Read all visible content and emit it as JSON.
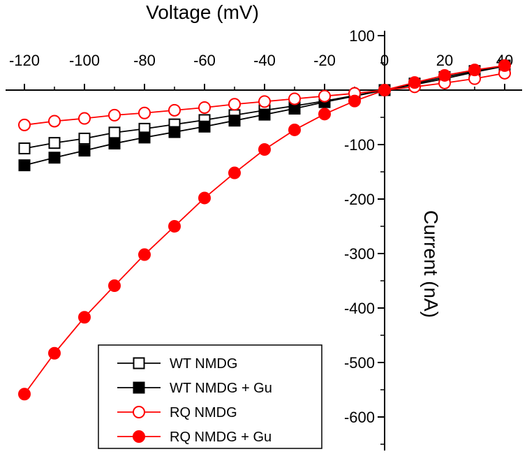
{
  "chart_data": {
    "type": "line",
    "xlabel": "Voltage (mV)",
    "ylabel": "Current (nA)",
    "xlim": [
      -120,
      40
    ],
    "ylim": [
      -620,
      100
    ],
    "xticks": [
      -120,
      -100,
      -80,
      -60,
      -40,
      -20,
      0,
      20,
      40
    ],
    "yticks": [
      100,
      0,
      -100,
      -200,
      -300,
      -400,
      -500,
      -600
    ],
    "x_axis_position": "top, crossing at y = 0",
    "y_axis_position": "right, crossing at x = 0",
    "grid": false,
    "legend_position": "bottom-left",
    "x": [
      -120,
      -110,
      -100,
      -90,
      -80,
      -70,
      -60,
      -50,
      -40,
      -30,
      -20,
      -10,
      0,
      10,
      20,
      30,
      40
    ],
    "series": [
      {
        "name": "WT NMDG",
        "color": "#000000",
        "marker": "square-open",
        "values": [
          -107,
          -97,
          -89,
          -78,
          -71,
          -63,
          -55,
          -46,
          -37,
          -29,
          -20,
          -10,
          0,
          10,
          21,
          33,
          44
        ]
      },
      {
        "name": "WT NMDG + Gu",
        "color": "#000000",
        "marker": "square-filled",
        "values": [
          -138,
          -124,
          -111,
          -98,
          -87,
          -77,
          -67,
          -56,
          -45,
          -34,
          -22,
          -11,
          0,
          12,
          24,
          35,
          45
        ]
      },
      {
        "name": "RQ NMDG",
        "color": "#ff0000",
        "marker": "circle-open",
        "values": [
          -64,
          -57,
          -52,
          -46,
          -42,
          -37,
          -32,
          -26,
          -21,
          -16,
          -11,
          -6,
          0,
          6,
          13,
          21,
          31
        ]
      },
      {
        "name": "RQ NMDG + Gu",
        "color": "#ff0000",
        "marker": "circle-filled",
        "values": [
          -558,
          -483,
          -417,
          -359,
          -302,
          -250,
          -198,
          -152,
          -109,
          -73,
          -44,
          -20,
          0,
          14,
          27,
          37,
          45
        ]
      }
    ]
  }
}
